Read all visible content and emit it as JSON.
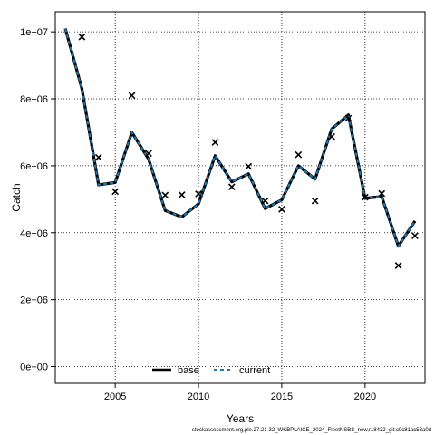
{
  "chart_data": {
    "type": "line",
    "xlabel": "Years",
    "ylabel": "Catch",
    "xlim": [
      2001.4,
      2023.6
    ],
    "ylim": [
      -500000,
      10600000
    ],
    "x_ticks": [
      2005,
      2010,
      2015,
      2020
    ],
    "x_tick_labels": [
      "2005",
      "2010",
      "2015",
      "2020"
    ],
    "y_ticks": [
      0,
      2000000,
      4000000,
      6000000,
      8000000,
      10000000
    ],
    "y_tick_labels": [
      "0e+00",
      "2e+06",
      "4e+06",
      "6e+06",
      "8e+06",
      "1e+07"
    ],
    "grid": true,
    "legend_position": "bottom",
    "x": [
      2002,
      2003,
      2004,
      2005,
      2006,
      2007,
      2008,
      2009,
      2010,
      2011,
      2012,
      2013,
      2014,
      2015,
      2016,
      2017,
      2018,
      2019,
      2020,
      2021,
      2022,
      2023
    ],
    "series": [
      {
        "name": "base",
        "color": "#000000",
        "style": "solid",
        "values": [
          10100000,
          8300000,
          5430000,
          5500000,
          7000000,
          6200000,
          4660000,
          4470000,
          4860000,
          6300000,
          5520000,
          5760000,
          4720000,
          4980000,
          6000000,
          5600000,
          7100000,
          7520000,
          5030000,
          5080000,
          3600000,
          4350000
        ]
      },
      {
        "name": "current",
        "color": "#1f78b4",
        "style": "dashed",
        "values": [
          10100000,
          8300000,
          5430000,
          5500000,
          7000000,
          6200000,
          4660000,
          4470000,
          4860000,
          6300000,
          5520000,
          5760000,
          4720000,
          4980000,
          6000000,
          5600000,
          7100000,
          7520000,
          5030000,
          5080000,
          3600000,
          4350000
        ]
      }
    ],
    "observed": {
      "marker": "x",
      "values": [
        null,
        9850000,
        6250000,
        5230000,
        8100000,
        6370000,
        5120000,
        5130000,
        5160000,
        6700000,
        5370000,
        5980000,
        4950000,
        4700000,
        6330000,
        4950000,
        6870000,
        7420000,
        5060000,
        5170000,
        3020000,
        3910000
      ]
    }
  },
  "footer_text": "stockassessment.org,ple.27.21-32_WKBPLAICE_2024_FleetNSBS_new,r18432_git:c9c81ac53a0d"
}
